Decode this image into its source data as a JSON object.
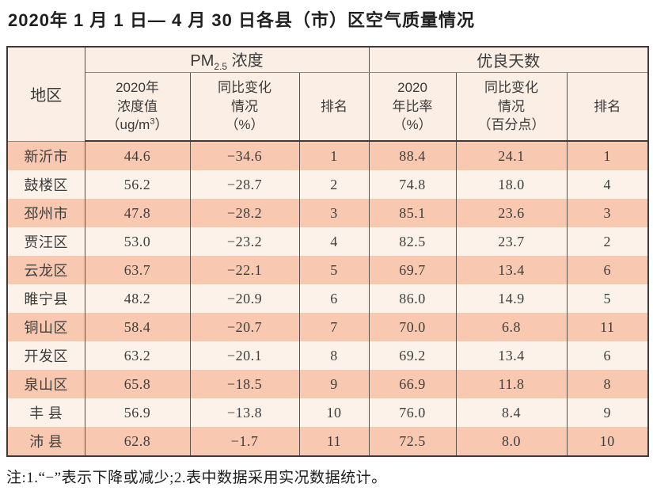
{
  "title": "2020年 1 月 1 日— 4 月 30 日各县（市）区空气质量情况",
  "footnote": "注:1.“−”表示下降或减少;2.表中数据采用实况数据统计。",
  "colors": {
    "row_odd": "#f8c8b0",
    "row_even": "#fdf2ea",
    "header_bg": "#fbeee5",
    "border": "#57504b",
    "border_dark": "#3e3a37"
  },
  "header": {
    "corner": "地区",
    "group_pm_prefix": "PM",
    "group_pm_sub": "2.5",
    "group_pm_suffix": " 浓度",
    "group_days": "优良天数",
    "conc_lines": "2020年\n浓度值",
    "conc_unit_pre": "（ug/m",
    "conc_unit_sup": "3",
    "conc_unit_post": "）",
    "pm_yoy": "同比变化\n情况\n（%）",
    "pm_rank": "排名",
    "days_ratio": "2020\n年比率\n（%）",
    "days_yoy": "同比变化\n情况\n（百分点）",
    "days_rank": "排名"
  },
  "chart_data": {
    "type": "table",
    "title": "2020年 1 月 1 日— 4 月 30 日各县（市）区空气质量情况",
    "column_groups": [
      {
        "label": "PM2.5 浓度",
        "span": 3
      },
      {
        "label": "优良天数",
        "span": 3
      }
    ],
    "columns": [
      "地区",
      "2020年浓度值（ug/m3）",
      "同比变化情况（%）",
      "排名",
      "2020年比率（%）",
      "同比变化情况（百分点）",
      "排名"
    ],
    "rows": [
      {
        "region": "新沂市",
        "values": [
          "44.6",
          "−34.6",
          "1",
          "88.4",
          "24.1",
          "1"
        ]
      },
      {
        "region": "鼓楼区",
        "values": [
          "56.2",
          "−28.7",
          "2",
          "74.8",
          "18.0",
          "4"
        ]
      },
      {
        "region": "邳州市",
        "values": [
          "47.8",
          "−28.2",
          "3",
          "85.1",
          "23.6",
          "3"
        ]
      },
      {
        "region": "贾汪区",
        "values": [
          "53.0",
          "−23.2",
          "4",
          "82.5",
          "23.7",
          "2"
        ]
      },
      {
        "region": "云龙区",
        "values": [
          "63.7",
          "−22.1",
          "5",
          "69.7",
          "13.4",
          "6"
        ]
      },
      {
        "region": "睢宁县",
        "values": [
          "48.2",
          "−20.9",
          "6",
          "86.0",
          "14.9",
          "5"
        ]
      },
      {
        "region": "铜山区",
        "values": [
          "58.4",
          "−20.7",
          "7",
          "70.0",
          "6.8",
          "11"
        ]
      },
      {
        "region": "开发区",
        "values": [
          "63.2",
          "−20.1",
          "8",
          "69.2",
          "13.4",
          "6"
        ]
      },
      {
        "region": "泉山区",
        "values": [
          "65.8",
          "−18.5",
          "9",
          "66.9",
          "11.8",
          "8"
        ]
      },
      {
        "region": "丰 县",
        "values": [
          "56.9",
          "−13.8",
          "10",
          "76.0",
          "8.4",
          "9"
        ]
      },
      {
        "region": "沛 县",
        "values": [
          "62.8",
          "−1.7",
          "11",
          "72.5",
          "8.0",
          "10"
        ]
      }
    ],
    "footnote": "注:1.“−”表示下降或减少;2.表中数据采用实况数据统计。",
    "layout": {
      "header_grid": true,
      "zebra_rows": true,
      "legend": "none"
    }
  }
}
